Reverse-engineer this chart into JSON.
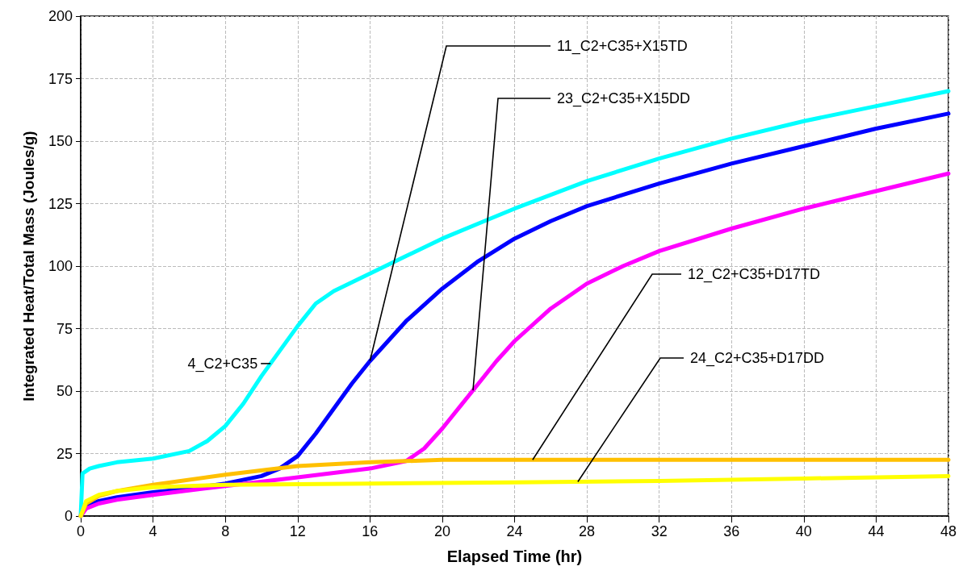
{
  "chart_data": {
    "type": "line",
    "xlabel": "Elapsed Time (hr)",
    "ylabel": "Integrated Heat/Total Mass (Joules/g)",
    "xlim": [
      0,
      48
    ],
    "xticks": [
      0,
      4,
      8,
      12,
      16,
      20,
      24,
      28,
      32,
      36,
      40,
      44,
      48
    ],
    "ylim": [
      0,
      200
    ],
    "yticks": [
      0,
      25,
      50,
      75,
      100,
      125,
      150,
      175,
      200
    ],
    "grid": true,
    "legend": false,
    "marker": "none",
    "line_style": "solid",
    "series": [
      {
        "name": "4_C2+C35",
        "color": "#00ffff",
        "x": [
          0,
          0.1,
          0.5,
          1,
          2,
          4,
          6,
          7,
          8,
          9,
          10,
          11,
          12,
          13,
          14,
          16,
          18,
          20,
          22,
          24,
          28,
          32,
          36,
          40,
          44,
          48
        ],
        "values": [
          0,
          17,
          19,
          20,
          21.5,
          23,
          26,
          30,
          36,
          45,
          56,
          66,
          76,
          85,
          90,
          97,
          104,
          111,
          117,
          123,
          134,
          143,
          151,
          158,
          164,
          170
        ]
      },
      {
        "name": "11_C2+C35+X15TD",
        "color": "#0000ff",
        "x": [
          0,
          0.3,
          1,
          2,
          4,
          6,
          8,
          10,
          11,
          12,
          13,
          14,
          15,
          16,
          17,
          18,
          20,
          22,
          24,
          26,
          28,
          32,
          36,
          40,
          44,
          48
        ],
        "values": [
          0,
          4,
          6,
          7.5,
          9.5,
          11,
          13,
          16,
          19,
          24,
          33,
          43,
          53,
          62,
          70,
          78,
          91,
          102,
          111,
          118,
          124,
          133,
          141,
          148,
          155,
          161
        ]
      },
      {
        "name": "23_C2+C35+X15DD",
        "color": "#ff00ff",
        "x": [
          0,
          0.3,
          1,
          2,
          4,
          8,
          12,
          16,
          18,
          19,
          20,
          21,
          22,
          23,
          24,
          26,
          28,
          30,
          32,
          36,
          40,
          44,
          48
        ],
        "values": [
          0,
          3,
          5,
          6.5,
          8.5,
          12,
          15.5,
          19,
          22,
          27,
          35,
          44,
          53,
          62,
          70,
          83,
          93,
          100,
          106,
          115,
          123,
          130,
          137
        ]
      },
      {
        "name": "12_C2+C35+D17TD",
        "color": "#ffc000",
        "x": [
          0,
          0.3,
          1,
          2,
          4,
          8,
          12,
          16,
          20,
          24,
          32,
          40,
          48
        ],
        "values": [
          0,
          5,
          8,
          10,
          12.5,
          16.5,
          20,
          21.5,
          22.5,
          22.5,
          22.5,
          22.5,
          22.5
        ]
      },
      {
        "name": "24_C2+C35+D17DD",
        "color": "#ffff00",
        "x": [
          0,
          0.3,
          1,
          2,
          4,
          8,
          16,
          24,
          32,
          40,
          48
        ],
        "values": [
          0,
          6,
          8.5,
          10,
          11.5,
          12.5,
          13,
          13.5,
          14,
          15,
          16
        ]
      }
    ]
  }
}
